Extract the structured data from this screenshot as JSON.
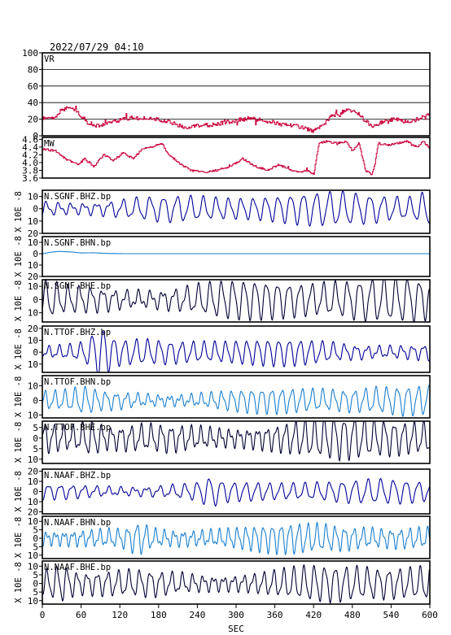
{
  "header": {
    "datetime": "2022/07/29  04:10"
  },
  "chart_data": {
    "type": "line",
    "xlabel": "SEC",
    "xlim": [
      0,
      600
    ],
    "xticks": [
      0,
      60,
      120,
      180,
      240,
      300,
      360,
      420,
      480,
      540,
      600
    ],
    "panels": [
      {
        "id": "vr",
        "label": "VR",
        "ylabel": "",
        "color": "#cc1144",
        "ylim": [
          0,
          100
        ],
        "yticks": [
          0,
          20,
          40,
          60,
          80,
          100
        ],
        "yticklabels": [
          "0",
          "20",
          "40",
          "60",
          "80",
          "100"
        ],
        "grid": true,
        "kind": "step",
        "keyframes": [
          [
            0,
            20
          ],
          [
            10,
            24
          ],
          [
            20,
            22
          ],
          [
            30,
            32
          ],
          [
            45,
            34
          ],
          [
            55,
            28
          ],
          [
            70,
            16
          ],
          [
            85,
            12
          ],
          [
            100,
            14
          ],
          [
            115,
            18
          ],
          [
            135,
            22
          ],
          [
            160,
            21
          ],
          [
            190,
            18
          ],
          [
            205,
            14
          ],
          [
            220,
            10
          ],
          [
            245,
            12
          ],
          [
            270,
            14
          ],
          [
            295,
            18
          ],
          [
            320,
            21
          ],
          [
            345,
            18
          ],
          [
            370,
            14
          ],
          [
            395,
            12
          ],
          [
            410,
            8
          ],
          [
            420,
            6
          ],
          [
            435,
            12
          ],
          [
            445,
            22
          ],
          [
            455,
            26
          ],
          [
            470,
            30
          ],
          [
            480,
            31
          ],
          [
            490,
            26
          ],
          [
            500,
            18
          ],
          [
            510,
            12
          ],
          [
            525,
            16
          ],
          [
            545,
            20
          ],
          [
            560,
            17
          ],
          [
            575,
            18
          ],
          [
            590,
            24
          ],
          [
            600,
            26
          ]
        ]
      },
      {
        "id": "mw",
        "label": "MW",
        "ylabel": "",
        "color": "#cc1144",
        "ylim": [
          3.6,
          4.65
        ],
        "yticks": [
          3.6,
          3.8,
          4.0,
          4.2,
          4.4,
          4.6
        ],
        "yticklabels": [
          "3.6",
          "3.8",
          "4.0",
          "4.2",
          "4.4",
          "4.6"
        ],
        "grid": false,
        "kind": "step",
        "keyframes": [
          [
            0,
            4.35
          ],
          [
            20,
            4.3
          ],
          [
            40,
            4.05
          ],
          [
            55,
            3.95
          ],
          [
            65,
            4.1
          ],
          [
            80,
            3.9
          ],
          [
            95,
            4.2
          ],
          [
            110,
            4.05
          ],
          [
            125,
            4.25
          ],
          [
            140,
            4.1
          ],
          [
            155,
            4.35
          ],
          [
            170,
            4.4
          ],
          [
            185,
            4.5
          ],
          [
            195,
            4.2
          ],
          [
            210,
            4.0
          ],
          [
            230,
            3.8
          ],
          [
            250,
            3.75
          ],
          [
            270,
            3.8
          ],
          [
            290,
            3.9
          ],
          [
            310,
            4.1
          ],
          [
            330,
            3.9
          ],
          [
            350,
            3.8
          ],
          [
            365,
            3.95
          ],
          [
            380,
            3.85
          ],
          [
            395,
            3.75
          ],
          [
            410,
            3.8
          ],
          [
            420,
            3.7
          ],
          [
            428,
            4.5
          ],
          [
            440,
            4.55
          ],
          [
            455,
            4.5
          ],
          [
            470,
            4.55
          ],
          [
            480,
            4.3
          ],
          [
            490,
            4.5
          ],
          [
            500,
            3.8
          ],
          [
            510,
            3.7
          ],
          [
            515,
            4.0
          ],
          [
            520,
            4.5
          ],
          [
            535,
            4.45
          ],
          [
            550,
            4.5
          ],
          [
            565,
            4.55
          ],
          [
            580,
            4.4
          ],
          [
            590,
            4.55
          ],
          [
            600,
            4.35
          ]
        ]
      },
      {
        "id": "sgnf_bhz",
        "label": "N.SGNF.BHZ.bp",
        "ylabel": "X 10E -8",
        "color": "#000099",
        "ylim": [
          -20,
          15
        ],
        "yticks": [
          -20,
          -10,
          0,
          10
        ],
        "yticklabels": [
          "20",
          "10",
          "0",
          "10"
        ],
        "grid": false,
        "kind": "wave",
        "wave": {
          "period": 20,
          "amp": 8,
          "mod": 2,
          "seed": 11,
          "spike_at": 595,
          "spike_amp": 14
        }
      },
      {
        "id": "sgnf_bhn",
        "label": "N.SGNF.BHN.bp",
        "ylabel": "X 10E -8",
        "color": "#1a7fd0",
        "ylim": [
          -20,
          15
        ],
        "yticks": [
          -20,
          -10,
          0,
          10
        ],
        "yticklabels": [
          "20",
          "10",
          "0",
          "10"
        ],
        "grid": false,
        "kind": "drift",
        "keyframes": [
          [
            0,
            0
          ],
          [
            10,
            1
          ],
          [
            25,
            2
          ],
          [
            45,
            1.5
          ],
          [
            60,
            0.6
          ],
          [
            80,
            0.8
          ],
          [
            100,
            0.2
          ],
          [
            130,
            0
          ],
          [
            600,
            0
          ]
        ]
      },
      {
        "id": "sgnf_bhe",
        "label": "N.SGNF.BHE.bp",
        "ylabel": "X 10E -8",
        "color": "#000033",
        "ylim": [
          -17,
          15
        ],
        "yticks": [
          -10,
          0,
          10
        ],
        "yticklabels": [
          "10",
          "0",
          "10"
        ],
        "grid": false,
        "kind": "wave",
        "wave": {
          "period": 18,
          "amp": 10,
          "mod": 3,
          "seed": 23,
          "spike_at": 8,
          "spike_amp": 14
        }
      },
      {
        "id": "ttof_bhz",
        "label": "N.TTOF.BHZ.bp",
        "ylabel": "X 10E -8",
        "color": "#000099",
        "ylim": [
          -17,
          22
        ],
        "yticks": [
          -10,
          0,
          10,
          20
        ],
        "yticklabels": [
          "10",
          "0",
          "10",
          "20"
        ],
        "grid": false,
        "kind": "wave",
        "wave": {
          "period": 17,
          "amp": 7,
          "mod": 2,
          "seed": 37,
          "spike_at": 90,
          "spike_amp": 20
        }
      },
      {
        "id": "ttof_bhn",
        "label": "N.TTOF.BHN.bp",
        "ylabel": "X 10E -8",
        "color": "#1a7fd0",
        "ylim": [
          -12,
          17
        ],
        "yticks": [
          -10,
          0,
          10
        ],
        "yticklabels": [
          "10",
          "0",
          "10"
        ],
        "grid": false,
        "kind": "wave",
        "wave": {
          "period": 16,
          "amp": 6,
          "mod": 2,
          "seed": 41,
          "spike_at": 65,
          "spike_amp": 9
        }
      },
      {
        "id": "ttof_bhe",
        "label": "N.TTOF.BHE.bp",
        "ylabel": "X 10E -8",
        "color": "#000033",
        "ylim": [
          -12,
          8
        ],
        "yticks": [
          -10,
          -5,
          0,
          5
        ],
        "yticklabels": [
          "10",
          "5",
          "0",
          "5"
        ],
        "grid": false,
        "kind": "wave",
        "wave": {
          "period": 15,
          "amp": 6,
          "mod": 2,
          "seed": 53,
          "spike_at": 75,
          "spike_amp": 10
        }
      },
      {
        "id": "naaf_bhz",
        "label": "N.NAAF.BHZ.bp",
        "ylabel": "X 10E -8",
        "color": "#000099",
        "ylim": [
          -22,
          22
        ],
        "yticks": [
          -20,
          -10,
          0,
          10,
          20
        ],
        "yticklabels": [
          "20",
          "10",
          "0",
          "10",
          "20"
        ],
        "grid": false,
        "kind": "wave",
        "wave": {
          "period": 19,
          "amp": 7,
          "mod": 2,
          "seed": 67,
          "spike_at": 260,
          "spike_amp": 13
        }
      },
      {
        "id": "naaf_bhn",
        "label": "N.NAAF.BHN.bp",
        "ylabel": "X 10E -8",
        "color": "#1a7fd0",
        "ylim": [
          -12,
          13
        ],
        "yticks": [
          -10,
          -5,
          0,
          5,
          10
        ],
        "yticklabels": [
          "10",
          "5",
          "0",
          "5",
          "10"
        ],
        "grid": false,
        "kind": "wave",
        "wave": {
          "period": 14,
          "amp": 5,
          "mod": 2,
          "seed": 79,
          "spike_at": 150,
          "spike_amp": 9
        }
      },
      {
        "id": "naaf_bhe",
        "label": "N.NAAF.BHE.bp",
        "ylabel": "X 10E -8",
        "color": "#000033",
        "ylim": [
          -12,
          13
        ],
        "yticks": [
          -10,
          -5,
          0,
          5,
          10
        ],
        "yticklabels": [
          "10",
          "5",
          "0",
          "5",
          "10"
        ],
        "grid": false,
        "kind": "wave",
        "wave": {
          "period": 16,
          "amp": 7,
          "mod": 2,
          "seed": 97,
          "spike_at": 30,
          "spike_amp": 11
        }
      }
    ]
  }
}
